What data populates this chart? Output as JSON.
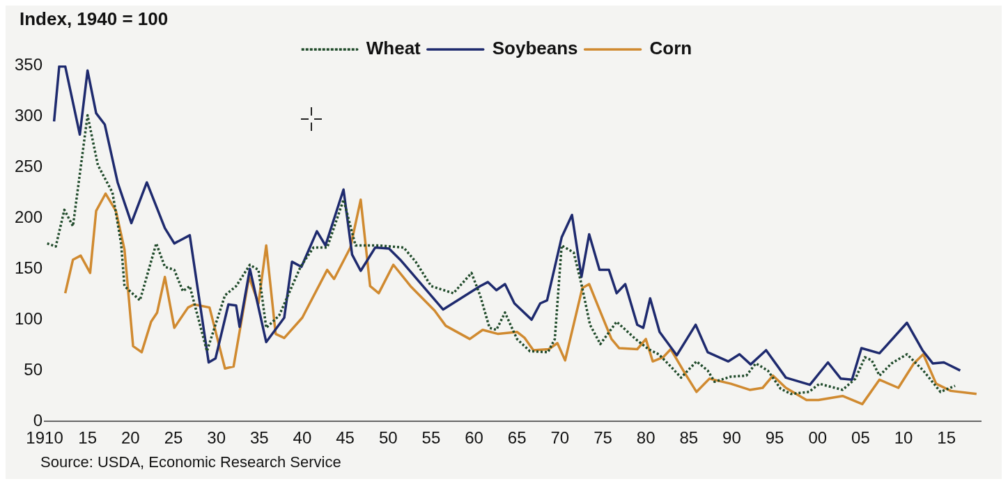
{
  "chart_data": {
    "type": "line",
    "ylabel": "Index, 1940 = 100",
    "annotations": [
      "Source: USDA, Economic Research Service"
    ],
    "xlim": [
      1910,
      2019
    ],
    "xticks": [
      {
        "value": 1910,
        "label": "1910"
      },
      {
        "value": 1915,
        "label": "15"
      },
      {
        "value": 1920,
        "label": "20"
      },
      {
        "value": 1925,
        "label": "25"
      },
      {
        "value": 1930,
        "label": "30"
      },
      {
        "value": 1935,
        "label": "35"
      },
      {
        "value": 1940,
        "label": "40"
      },
      {
        "value": 1945,
        "label": "45"
      },
      {
        "value": 1950,
        "label": "50"
      },
      {
        "value": 1955,
        "label": "55"
      },
      {
        "value": 1960,
        "label": "60"
      },
      {
        "value": 1965,
        "label": "65"
      },
      {
        "value": 1970,
        "label": "70"
      },
      {
        "value": 1975,
        "label": "75"
      },
      {
        "value": 1980,
        "label": "80"
      },
      {
        "value": 1985,
        "label": "85"
      },
      {
        "value": 1990,
        "label": "90"
      },
      {
        "value": 1995,
        "label": "95"
      },
      {
        "value": 2000,
        "label": "00"
      },
      {
        "value": 2005,
        "label": "05"
      },
      {
        "value": 2010,
        "label": "10"
      },
      {
        "value": 2015,
        "label": "15"
      }
    ],
    "ylim": [
      0,
      350
    ],
    "yticks": [
      0,
      50,
      100,
      150,
      200,
      250,
      300,
      350
    ],
    "grid": false,
    "legend": "top",
    "series": [
      {
        "name": "Wheat",
        "color": "#1f4a2a",
        "line_style": "dotted",
        "x": [
          1910.3,
          1911.3,
          1912.3,
          1913.3,
          1915,
          1916.2,
          1917.9,
          1918.9,
          1919.3,
          1921.1,
          1923,
          1924,
          1925.1,
          1926.1,
          1926.9,
          1928.9,
          1931,
          1932.3,
          1933.9,
          1934.9,
          1935.8,
          1937.3,
          1939.8,
          1941.3,
          1942.9,
          1944.8,
          1946.2,
          1948.9,
          1951.8,
          1953.2,
          1955,
          1957.6,
          1959.7,
          1960.7,
          1961.8,
          1962.6,
          1963.6,
          1965,
          1966.5,
          1968.6,
          1969.4,
          1970.2,
          1971.6,
          1972.5,
          1973.5,
          1974.7,
          1976.6,
          1978.8,
          1980.3,
          1981.5,
          1982.9,
          1984.1,
          1985.9,
          1987.2,
          1988,
          1989.9,
          1991.7,
          1992.8,
          1994.2,
          1995.7,
          1996.9,
          1999,
          2000.2,
          2002.9,
          2004.4,
          2005.5,
          2006.3,
          2007.2,
          2008.6,
          2010.4,
          2012.3,
          2014.3,
          2016
        ],
        "values": [
          175,
          172,
          208,
          192,
          301,
          252,
          225,
          175,
          133,
          119,
          175,
          152,
          149,
          128,
          133,
          69,
          124,
          133,
          154,
          149,
          92,
          104,
          152,
          171,
          171,
          218,
          173,
          173,
          171,
          157,
          133,
          126,
          146,
          124,
          92,
          90,
          107,
          81,
          69,
          68,
          81,
          173,
          166,
          135,
          95,
          76,
          98,
          81,
          71,
          66,
          54,
          43,
          59,
          50,
          39,
          44,
          45,
          57,
          50,
          32,
          27,
          29,
          37,
          31,
          42,
          63,
          60,
          45,
          57,
          66,
          50,
          29,
          35
        ]
      },
      {
        "name": "Soybeans",
        "color": "#1e2a6e",
        "line_style": "solid",
        "x": [
          1911.1,
          1911.7,
          1912.4,
          1914.1,
          1915,
          1916,
          1917,
          1918.5,
          1920.1,
          1921.9,
          1924,
          1925.1,
          1926.9,
          1929.1,
          1929.9,
          1931.4,
          1932.3,
          1932.7,
          1933.9,
          1935.8,
          1937.9,
          1938.8,
          1939.9,
          1941.7,
          1942.7,
          1944.8,
          1945.8,
          1946.8,
          1948.5,
          1950.1,
          1951.4,
          1956.4,
          1960.7,
          1961.6,
          1962.6,
          1963.6,
          1964.7,
          1966.7,
          1967.7,
          1968.5,
          1970.2,
          1971.4,
          1972.5,
          1973.4,
          1974.6,
          1975.7,
          1976.6,
          1977.6,
          1979,
          1979.7,
          1980.5,
          1981.6,
          1983.6,
          1985.8,
          1987.2,
          1989.6,
          1990.9,
          1992.2,
          1994,
          1996.3,
          1999.1,
          2001.2,
          2002.7,
          2004,
          2005.1,
          2007.2,
          2010.4,
          2012.2,
          2013.4,
          2014.7,
          2016.6
        ],
        "values": [
          295,
          349,
          349,
          282,
          345,
          303,
          292,
          235,
          195,
          235,
          190,
          175,
          183,
          58,
          62,
          115,
          114,
          93,
          150,
          78,
          102,
          157,
          152,
          187,
          173,
          228,
          164,
          148,
          171,
          170,
          159,
          110,
          133,
          137,
          129,
          135,
          116,
          100,
          116,
          119,
          181,
          203,
          142,
          184,
          149,
          149,
          126,
          135,
          95,
          92,
          121,
          88,
          65,
          95,
          68,
          59,
          66,
          56,
          70,
          43,
          36,
          58,
          42,
          41,
          72,
          67,
          97,
          70,
          57,
          58,
          50
        ]
      },
      {
        "name": "Corn",
        "color": "#d08a30",
        "line_style": "solid",
        "x": [
          1912.4,
          1913.3,
          1914.2,
          1915.3,
          1916,
          1917.1,
          1918.3,
          1919.3,
          1920.3,
          1921.3,
          1922.4,
          1923.1,
          1924,
          1925.1,
          1926.7,
          1927.4,
          1929.2,
          1931,
          1932,
          1933.8,
          1934.9,
          1935.8,
          1936.9,
          1937.9,
          1940,
          1942.9,
          1943.7,
          1945.6,
          1946.8,
          1947.9,
          1948.9,
          1950.6,
          1952.6,
          1955.4,
          1956.7,
          1959.5,
          1961,
          1962.8,
          1965,
          1965.9,
          1966.9,
          1968.7,
          1969.7,
          1970.6,
          1972.6,
          1973.4,
          1974.5,
          1976,
          1976.9,
          1979,
          1980,
          1980.8,
          1982,
          1982.9,
          1984.5,
          1985.9,
          1987.4,
          1989.9,
          1992.1,
          1993.6,
          1994.8,
          1996.3,
          1998.7,
          2000.1,
          2002.9,
          2005.2,
          2007.2,
          2009.4,
          2011.2,
          2012.3,
          2013.8,
          2015.5,
          2018.5
        ],
        "values": [
          126,
          159,
          163,
          146,
          207,
          224,
          207,
          169,
          74,
          68,
          98,
          107,
          142,
          92,
          112,
          115,
          112,
          52,
          54,
          142,
          116,
          173,
          86,
          82,
          102,
          149,
          140,
          171,
          218,
          133,
          126,
          154,
          133,
          109,
          94,
          81,
          90,
          86,
          88,
          82,
          70,
          71,
          77,
          60,
          131,
          135,
          112,
          81,
          72,
          71,
          81,
          59,
          63,
          71,
          48,
          29,
          42,
          37,
          31,
          33,
          45,
          33,
          21,
          21,
          25,
          17,
          41,
          33,
          57,
          66,
          37,
          30,
          27
        ]
      }
    ]
  }
}
